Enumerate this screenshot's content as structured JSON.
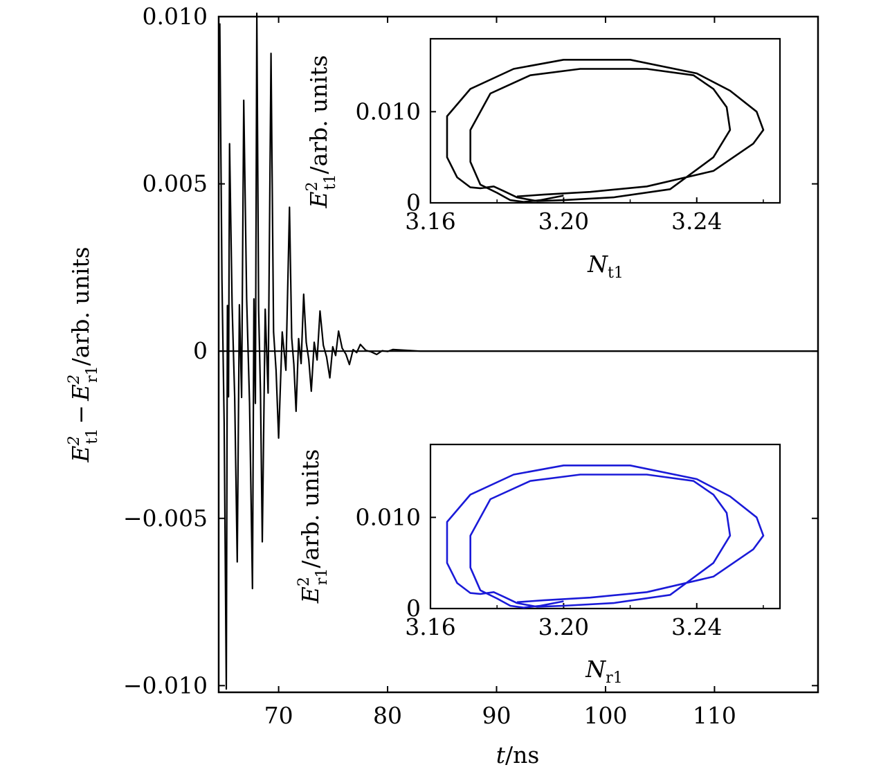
{
  "chart_data": [
    {
      "id": "main",
      "type": "line",
      "xlabel": {
        "var": "t",
        "unit": "/ns"
      },
      "ylabel": {
        "e1": "E",
        "e1sup": "2",
        "e1sub": "t1",
        "minus": "−",
        "e2": "E",
        "e2sup": "2",
        "e2sub": "r1",
        "unit": "/arb. units"
      },
      "xlim": [
        64.5,
        119.5
      ],
      "ylim": [
        -0.0102,
        0.01
      ],
      "xticks": [
        70,
        80,
        90,
        100,
        110
      ],
      "xtick_labels": [
        "70",
        "80",
        "90",
        "100",
        "110"
      ],
      "yticks": [
        0.01,
        0.005,
        0,
        -0.005,
        -0.01
      ],
      "ytick_labels": [
        "0.010",
        "0.005",
        "0",
        "−0.005",
        "−0.010"
      ],
      "series": [
        {
          "name": "E_t1^2 - E_r1^2",
          "color": "#000000",
          "description": "damped oscillation decaying to zero by ~83 ns",
          "peaks": [
            [
              64.6,
              0.0098
            ],
            [
              65.2,
              -0.0101
            ],
            [
              65.5,
              0.0062
            ],
            [
              66.2,
              -0.0063
            ],
            [
              66.8,
              0.0075
            ],
            [
              67.6,
              -0.0071
            ],
            [
              68.0,
              0.0101
            ],
            [
              68.5,
              -0.0057
            ],
            [
              69.3,
              0.0089
            ],
            [
              70.0,
              -0.0026
            ],
            [
              71.0,
              0.0043
            ],
            [
              71.6,
              -0.0018
            ],
            [
              72.3,
              0.0017
            ],
            [
              73.0,
              -0.0012
            ],
            [
              73.8,
              0.0012
            ],
            [
              74.7,
              -0.0008
            ],
            [
              75.5,
              0.0006
            ],
            [
              76.5,
              -0.0004
            ],
            [
              77.5,
              0.0002
            ],
            [
              79,
              -0.0001
            ],
            [
              80.5,
              5e-05
            ],
            [
              83,
              0
            ],
            [
              119.5,
              0
            ]
          ]
        }
      ]
    },
    {
      "id": "inset-top",
      "type": "line",
      "color": "#000000",
      "xlabel": {
        "var": "N",
        "sub": "t1"
      },
      "ylabel": {
        "var": "E",
        "sup": "2",
        "sub": "t1",
        "unit": "/arb. units"
      },
      "xlim": [
        3.16,
        3.265
      ],
      "ylim": [
        0,
        0.018
      ],
      "xticks": [
        3.16,
        3.2,
        3.24
      ],
      "xtick_labels": [
        "3.16",
        "3.20",
        "3.24"
      ],
      "yticks": [
        0,
        0.01
      ],
      "ytick_labels": [
        "0",
        "0.010"
      ],
      "curve": [
        [
          3.186,
          0.0007
        ],
        [
          3.194,
          0.0009
        ],
        [
          3.208,
          0.0012
        ],
        [
          3.225,
          0.0018
        ],
        [
          3.245,
          0.0035
        ],
        [
          3.257,
          0.0065
        ],
        [
          3.26,
          0.008
        ],
        [
          3.258,
          0.01
        ],
        [
          3.25,
          0.0123
        ],
        [
          3.24,
          0.0142
        ],
        [
          3.22,
          0.0157
        ],
        [
          3.2,
          0.0157
        ],
        [
          3.185,
          0.0147
        ],
        [
          3.172,
          0.0125
        ],
        [
          3.165,
          0.0095
        ],
        [
          3.165,
          0.005
        ],
        [
          3.168,
          0.0028
        ],
        [
          3.172,
          0.0017
        ],
        [
          3.175,
          0.0016
        ],
        [
          3.179,
          0.0018
        ],
        [
          3.182,
          0.0013
        ],
        [
          3.186,
          0.0006
        ],
        [
          3.192,
          0.0002
        ],
        [
          3.2,
          0.0003
        ],
        [
          3.215,
          0.0006
        ],
        [
          3.232,
          0.0015
        ],
        [
          3.245,
          0.005
        ],
        [
          3.25,
          0.008
        ],
        [
          3.249,
          0.0105
        ],
        [
          3.245,
          0.0125
        ],
        [
          3.239,
          0.014
        ],
        [
          3.225,
          0.0147
        ],
        [
          3.205,
          0.0147
        ],
        [
          3.19,
          0.014
        ],
        [
          3.178,
          0.012
        ],
        [
          3.172,
          0.008
        ],
        [
          3.172,
          0.0045
        ],
        [
          3.175,
          0.002
        ],
        [
          3.18,
          0.0011
        ],
        [
          3.184,
          0.0003
        ],
        [
          3.188,
          0.0001
        ],
        [
          3.193,
          0.0003
        ],
        [
          3.2,
          0.0008
        ]
      ]
    },
    {
      "id": "inset-bottom",
      "type": "line",
      "color": "#1a1ad8",
      "xlabel": {
        "var": "N",
        "sub": "r1"
      },
      "ylabel": {
        "var": "E",
        "sup": "2",
        "sub": "r1",
        "unit": "/arb. units"
      },
      "xlim": [
        3.16,
        3.265
      ],
      "ylim": [
        0,
        0.018
      ],
      "xticks": [
        3.16,
        3.2,
        3.24
      ],
      "xtick_labels": [
        "3.16",
        "3.20",
        "3.24"
      ],
      "yticks": [
        0,
        0.01
      ],
      "ytick_labels": [
        "0",
        "0.010"
      ],
      "curve": [
        [
          3.186,
          0.0007
        ],
        [
          3.194,
          0.0009
        ],
        [
          3.208,
          0.0012
        ],
        [
          3.225,
          0.0018
        ],
        [
          3.245,
          0.0035
        ],
        [
          3.257,
          0.0065
        ],
        [
          3.26,
          0.008
        ],
        [
          3.258,
          0.01
        ],
        [
          3.25,
          0.0123
        ],
        [
          3.24,
          0.0142
        ],
        [
          3.22,
          0.0157
        ],
        [
          3.2,
          0.0157
        ],
        [
          3.185,
          0.0147
        ],
        [
          3.172,
          0.0125
        ],
        [
          3.165,
          0.0095
        ],
        [
          3.165,
          0.005
        ],
        [
          3.168,
          0.0028
        ],
        [
          3.172,
          0.0017
        ],
        [
          3.175,
          0.0016
        ],
        [
          3.179,
          0.0018
        ],
        [
          3.182,
          0.0013
        ],
        [
          3.186,
          0.0006
        ],
        [
          3.192,
          0.0002
        ],
        [
          3.2,
          0.0003
        ],
        [
          3.215,
          0.0006
        ],
        [
          3.232,
          0.0015
        ],
        [
          3.245,
          0.005
        ],
        [
          3.25,
          0.008
        ],
        [
          3.249,
          0.0105
        ],
        [
          3.245,
          0.0125
        ],
        [
          3.239,
          0.014
        ],
        [
          3.225,
          0.0147
        ],
        [
          3.205,
          0.0147
        ],
        [
          3.19,
          0.014
        ],
        [
          3.178,
          0.012
        ],
        [
          3.172,
          0.008
        ],
        [
          3.172,
          0.0045
        ],
        [
          3.175,
          0.002
        ],
        [
          3.18,
          0.0011
        ],
        [
          3.184,
          0.0003
        ],
        [
          3.188,
          0.0001
        ],
        [
          3.193,
          0.0003
        ],
        [
          3.2,
          0.0008
        ]
      ]
    }
  ]
}
